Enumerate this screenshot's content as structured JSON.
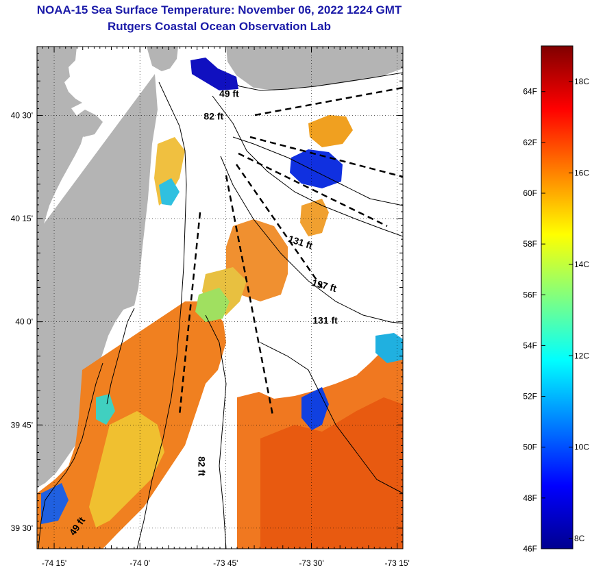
{
  "title": "NOAA-15 Sea Surface Temperature:  November 06, 2022 1224 GMT",
  "subtitle": "Rutgers Coastal Ocean Observation Lab",
  "map": {
    "lon_range": [
      -74.3,
      -73.2333
    ],
    "lat_range": [
      39.45,
      40.6667
    ],
    "lon_ticks": [
      {
        "value": -74.25,
        "label": "-74 15'"
      },
      {
        "value": -74.0,
        "label": "-74 0'"
      },
      {
        "value": -73.75,
        "label": "-73 45'"
      },
      {
        "value": -73.5,
        "label": "-73 30'"
      },
      {
        "value": -73.25,
        "label": "-73 15'"
      }
    ],
    "lat_ticks": [
      {
        "value": 40.5,
        "label": "40 30'"
      },
      {
        "value": 40.25,
        "label": "40 15'"
      },
      {
        "value": 40.0,
        "label": "40 0'"
      },
      {
        "value": 39.75,
        "label": "39 45'"
      },
      {
        "value": 39.5,
        "label": "39 30'"
      }
    ],
    "land_color": "#b4b4b4",
    "water_color": "#ffffff",
    "contour_labels": [
      {
        "text": "49 ft",
        "lon": -73.74,
        "lat": 40.545,
        "rotate": 0
      },
      {
        "text": "82 ft",
        "lon": -73.785,
        "lat": 40.49,
        "rotate": 0
      },
      {
        "text": "131 ft",
        "lon": -73.535,
        "lat": 40.185,
        "rotate": 18
      },
      {
        "text": "197 ft",
        "lon": -73.465,
        "lat": 40.08,
        "rotate": 15
      },
      {
        "text": "131 ft",
        "lon": -73.46,
        "lat": 39.995,
        "rotate": 0
      },
      {
        "text": "82 ft",
        "lon": -73.83,
        "lat": 39.65,
        "rotate": 90
      },
      {
        "text": "49 ft",
        "lon": -74.175,
        "lat": 39.5,
        "rotate": -55
      }
    ]
  },
  "colorbar": {
    "f_labels": [
      "64F",
      "62F",
      "60F",
      "58F",
      "56F",
      "54F",
      "52F",
      "50F",
      "48F",
      "46F"
    ],
    "f_values": [
      64,
      62,
      60,
      58,
      56,
      54,
      52,
      50,
      48,
      46
    ],
    "c_labels": [
      "18C",
      "16C",
      "14C",
      "12C",
      "10C",
      "8C"
    ],
    "c_values": [
      18,
      16,
      14,
      12,
      10,
      8
    ],
    "range_f": [
      46,
      65.8
    ],
    "colormap": [
      "#00008f",
      "#0000ff",
      "#0080ff",
      "#00ffff",
      "#80ff80",
      "#ffff00",
      "#ff8000",
      "#ff0000",
      "#800000"
    ]
  }
}
